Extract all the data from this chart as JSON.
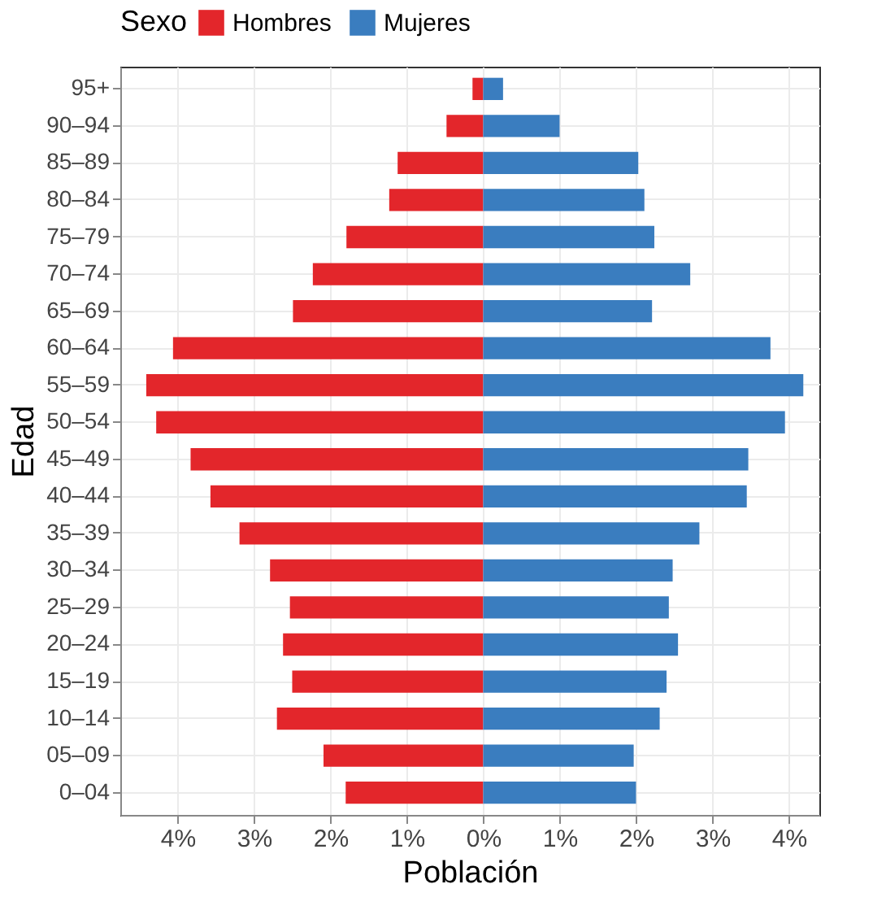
{
  "chart_data": {
    "type": "bar",
    "orientation": "horizontal",
    "stacked": true,
    "xlabel": "Población",
    "ylabel": "Edad",
    "legend_title": "Sexo",
    "legend": "top",
    "categories": [
      "95+",
      "90–94",
      "85–89",
      "80–84",
      "75–79",
      "70–74",
      "65–69",
      "60–64",
      "55–59",
      "50–54",
      "45–49",
      "40–44",
      "35–39",
      "30–34",
      "25–29",
      "20–24",
      "15–19",
      "10–14",
      "05–09",
      "0–04"
    ],
    "series": [
      {
        "name": "Hombres",
        "color": "#e3262b",
        "values": [
          -0.14,
          -0.48,
          -1.12,
          -1.23,
          -1.79,
          -2.23,
          -2.49,
          -4.06,
          -4.41,
          -4.28,
          -3.83,
          -3.57,
          -3.19,
          -2.79,
          -2.53,
          -2.62,
          -2.5,
          -2.7,
          -2.09,
          -1.8
        ]
      },
      {
        "name": "Mujeres",
        "color": "#3a7dbf",
        "values": [
          0.26,
          1.0,
          2.03,
          2.11,
          2.24,
          2.71,
          2.21,
          3.76,
          4.19,
          3.95,
          3.47,
          3.45,
          2.83,
          2.48,
          2.43,
          2.55,
          2.4,
          2.31,
          1.97,
          2.0
        ]
      }
    ],
    "xlim": [
      -4.75,
      4.4
    ],
    "xticks": [
      {
        "value": -4,
        "label": "4%"
      },
      {
        "value": -3,
        "label": "3%"
      },
      {
        "value": -2,
        "label": "2%"
      },
      {
        "value": -1,
        "label": "1%"
      },
      {
        "value": 0,
        "label": "0%"
      },
      {
        "value": 1,
        "label": "1%"
      },
      {
        "value": 2,
        "label": "2%"
      },
      {
        "value": 3,
        "label": "3%"
      },
      {
        "value": 4,
        "label": "4%"
      }
    ],
    "grid": true
  }
}
